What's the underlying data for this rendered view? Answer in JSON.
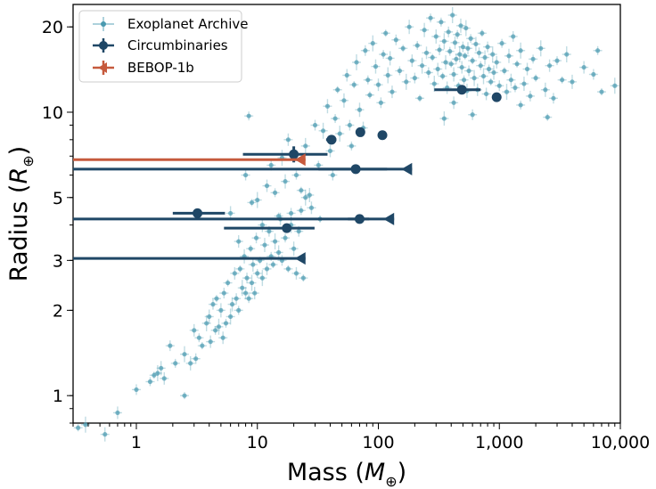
{
  "chart_data": {
    "type": "scatter",
    "xlabel": "Mass (M⊕)",
    "xlabel_base": "Mass (",
    "xlabel_symbol": "M",
    "xlabel_sub": "⊕",
    "xlabel_close": ")",
    "ylabel": "Radius (R⊕)",
    "ylabel_base": "Radius (",
    "ylabel_symbol": "R",
    "ylabel_sub": "⊕",
    "ylabel_close": ")",
    "xscale": "log",
    "yscale": "log",
    "xlim": [
      0.3,
      10000
    ],
    "ylim": [
      0.8,
      24
    ],
    "x_ticks": [
      {
        "value": 1,
        "label": "1"
      },
      {
        "value": 10,
        "label": "10"
      },
      {
        "value": 100,
        "label": "100"
      },
      {
        "value": 1000,
        "label": "1,000"
      },
      {
        "value": 10000,
        "label": "10,000"
      }
    ],
    "y_ticks": [
      {
        "value": 1,
        "label": "1"
      },
      {
        "value": 2,
        "label": "2"
      },
      {
        "value": 3,
        "label": "3"
      },
      {
        "value": 5,
        "label": "5"
      },
      {
        "value": 10,
        "label": "10"
      },
      {
        "value": 20,
        "label": "20"
      }
    ],
    "legend": {
      "location": "top-left",
      "entries": [
        {
          "label": "Exoplanet Archive",
          "color": "#4a9ab0"
        },
        {
          "label": "Circumbinaries",
          "color": "#1f4766"
        },
        {
          "label": "BEBOP-1b",
          "color": "#c65a3d"
        }
      ]
    },
    "colors": {
      "archive": "#4a9ab0",
      "circumbinary": "#1f4766",
      "bebop": "#c65a3d"
    },
    "series": [
      {
        "name": "Circumbinaries",
        "measured": [
          {
            "mass": 3.2,
            "mass_lo": 2.0,
            "mass_hi": 5.4,
            "radius": 4.4
          },
          {
            "mass": 17.5,
            "mass_lo": 5.3,
            "mass_hi": 29.7,
            "radius": 3.9
          },
          {
            "mass": 20.0,
            "mass_lo": 7.6,
            "mass_hi": 38.0,
            "radius": 7.1
          },
          {
            "mass": 41,
            "mass_lo": 37,
            "mass_hi": 45,
            "radius": 8.0
          },
          {
            "mass": 65,
            "mass_lo": 32,
            "mass_hi": 118,
            "radius": 6.3
          },
          {
            "mass": 70,
            "mass_lo": 56,
            "mass_hi": 84,
            "radius": 4.2
          },
          {
            "mass": 71,
            "mass_lo": 71,
            "mass_hi": 71,
            "radius": 8.5
          },
          {
            "mass": 108,
            "mass_lo": 108,
            "mass_hi": 108,
            "radius": 8.3
          },
          {
            "mass": 490,
            "mass_lo": 290,
            "mass_hi": 700,
            "radius": 12.0
          },
          {
            "mass": 950,
            "mass_lo": 950,
            "mass_hi": 950,
            "radius": 11.3
          }
        ],
        "upper_limits": [
          {
            "mass_limit": 190,
            "radius": 6.3
          },
          {
            "mass_limit": 135,
            "radius": 4.2
          },
          {
            "mass_limit": 25,
            "radius": 3.05
          }
        ]
      },
      {
        "name": "BEBOP-1b",
        "upper_limits": [
          {
            "mass_limit": 25,
            "radius": 6.8
          }
        ]
      },
      {
        "name": "Exoplanet Archive",
        "points": [
          [
            0.33,
            0.77
          ],
          [
            0.38,
            0.79
          ],
          [
            0.55,
            0.73
          ],
          [
            0.7,
            0.87
          ],
          [
            1.0,
            1.05
          ],
          [
            1.3,
            1.12
          ],
          [
            1.4,
            1.18
          ],
          [
            1.5,
            1.2
          ],
          [
            1.6,
            1.25
          ],
          [
            1.7,
            1.15
          ],
          [
            1.9,
            1.5
          ],
          [
            2.1,
            1.3
          ],
          [
            2.5,
            1.0
          ],
          [
            2.5,
            1.4
          ],
          [
            2.8,
            1.3
          ],
          [
            3.0,
            1.7
          ],
          [
            3.1,
            1.35
          ],
          [
            3.3,
            1.6
          ],
          [
            3.5,
            1.5
          ],
          [
            3.8,
            1.8
          ],
          [
            4.0,
            1.9
          ],
          [
            4.1,
            1.55
          ],
          [
            4.3,
            2.1
          ],
          [
            4.5,
            1.7
          ],
          [
            4.6,
            2.2
          ],
          [
            4.8,
            1.75
          ],
          [
            5.0,
            2.0
          ],
          [
            5.2,
            1.6
          ],
          [
            5.3,
            2.3
          ],
          [
            5.5,
            1.8
          ],
          [
            5.7,
            2.5
          ],
          [
            6.0,
            1.9
          ],
          [
            6.2,
            2.1
          ],
          [
            6.5,
            2.7
          ],
          [
            6.7,
            2.2
          ],
          [
            7.0,
            2.0
          ],
          [
            7.2,
            2.8
          ],
          [
            7.5,
            2.4
          ],
          [
            7.8,
            3.1
          ],
          [
            8.0,
            2.3
          ],
          [
            8.2,
            2.6
          ],
          [
            8.5,
            2.2
          ],
          [
            8.8,
            3.3
          ],
          [
            9.0,
            2.5
          ],
          [
            9.2,
            2.9
          ],
          [
            9.5,
            2.3
          ],
          [
            9.8,
            3.6
          ],
          [
            10,
            2.7
          ],
          [
            10.5,
            3.0
          ],
          [
            11,
            2.6
          ],
          [
            11.5,
            3.4
          ],
          [
            12,
            2.8
          ],
          [
            12.5,
            3.8
          ],
          [
            13,
            3.1
          ],
          [
            13.5,
            2.9
          ],
          [
            14,
            3.5
          ],
          [
            15,
            3.2
          ],
          [
            15.5,
            4.2
          ],
          [
            16,
            3.0
          ],
          [
            17,
            3.6
          ],
          [
            18,
            2.8
          ],
          [
            19,
            4.0
          ],
          [
            20,
            3.3
          ],
          [
            21,
            2.7
          ],
          [
            22,
            3.8
          ],
          [
            23,
            4.5
          ],
          [
            24,
            2.6
          ],
          [
            25,
            5.0
          ],
          [
            6.0,
            4.4
          ],
          [
            7.0,
            3.5
          ],
          [
            8.0,
            6.0
          ],
          [
            8.5,
            9.7
          ],
          [
            9.0,
            4.8
          ],
          [
            10,
            4.9
          ],
          [
            11,
            4.0
          ],
          [
            12,
            5.5
          ],
          [
            13,
            6.5
          ],
          [
            14,
            5.2
          ],
          [
            15,
            4.3
          ],
          [
            16,
            6.9
          ],
          [
            17,
            5.7
          ],
          [
            18,
            8.0
          ],
          [
            19,
            4.4
          ],
          [
            21,
            6.0
          ],
          [
            23,
            5.3
          ],
          [
            25,
            7.6
          ],
          [
            27,
            5.1
          ],
          [
            28,
            4.6
          ],
          [
            30,
            9.0
          ],
          [
            32,
            6.5
          ],
          [
            33,
            4.2
          ],
          [
            35,
            8.6
          ],
          [
            38,
            10.5
          ],
          [
            40,
            7.3
          ],
          [
            42,
            6.0
          ],
          [
            44,
            9.5
          ],
          [
            46,
            12.0
          ],
          [
            48,
            8.4
          ],
          [
            52,
            11.0
          ],
          [
            55,
            13.5
          ],
          [
            58,
            9.0
          ],
          [
            60,
            7.6
          ],
          [
            63,
            12.5
          ],
          [
            66,
            15.0
          ],
          [
            70,
            10.2
          ],
          [
            75,
            8.8
          ],
          [
            78,
            16.5
          ],
          [
            82,
            13.0
          ],
          [
            85,
            11.5
          ],
          [
            90,
            17.5
          ],
          [
            95,
            14.5
          ],
          [
            100,
            12.5
          ],
          [
            105,
            10.8
          ],
          [
            110,
            16.0
          ],
          [
            115,
            19.0
          ],
          [
            120,
            13.5
          ],
          [
            125,
            15.5
          ],
          [
            130,
            11.8
          ],
          [
            140,
            18.0
          ],
          [
            150,
            14.0
          ],
          [
            160,
            16.8
          ],
          [
            170,
            12.8
          ],
          [
            180,
            20.0
          ],
          [
            190,
            15.2
          ],
          [
            200,
            13.2
          ],
          [
            210,
            17.2
          ],
          [
            220,
            11.2
          ],
          [
            230,
            14.6
          ],
          [
            240,
            19.5
          ],
          [
            250,
            16.2
          ],
          [
            260,
            13.8
          ],
          [
            270,
            21.5
          ],
          [
            280,
            15.6
          ],
          [
            290,
            12.6
          ],
          [
            300,
            18.5
          ],
          [
            310,
            14.2
          ],
          [
            320,
            16.6
          ],
          [
            330,
            20.8
          ],
          [
            340,
            13.4
          ],
          [
            350,
            17.8
          ],
          [
            360,
            15.0
          ],
          [
            370,
            12.2
          ],
          [
            380,
            19.2
          ],
          [
            390,
            16.4
          ],
          [
            400,
            14.8
          ],
          [
            410,
            22.0
          ],
          [
            420,
            13.6
          ],
          [
            430,
            17.6
          ],
          [
            440,
            15.4
          ],
          [
            450,
            18.8
          ],
          [
            460,
            12.4
          ],
          [
            470,
            16.0
          ],
          [
            480,
            20.2
          ],
          [
            490,
            14.4
          ],
          [
            500,
            17.0
          ],
          [
            510,
            13.0
          ],
          [
            520,
            15.8
          ],
          [
            530,
            19.8
          ],
          [
            540,
            11.9
          ],
          [
            550,
            16.8
          ],
          [
            560,
            14.0
          ],
          [
            580,
            18.2
          ],
          [
            600,
            15.2
          ],
          [
            620,
            13.2
          ],
          [
            640,
            17.4
          ],
          [
            660,
            12.0
          ],
          [
            680,
            16.2
          ],
          [
            700,
            14.6
          ],
          [
            720,
            19.0
          ],
          [
            740,
            13.4
          ],
          [
            760,
            15.6
          ],
          [
            780,
            11.6
          ],
          [
            800,
            17.0
          ],
          [
            820,
            14.2
          ],
          [
            850,
            12.8
          ],
          [
            880,
            16.0
          ],
          [
            900,
            13.8
          ],
          [
            950,
            15.0
          ],
          [
            1000,
            12.4
          ],
          [
            1050,
            17.5
          ],
          [
            1100,
            14.0
          ],
          [
            1150,
            11.8
          ],
          [
            1200,
            15.8
          ],
          [
            1250,
            13.0
          ],
          [
            1300,
            18.5
          ],
          [
            1350,
            12.2
          ],
          [
            1400,
            14.8
          ],
          [
            1500,
            16.5
          ],
          [
            1600,
            12.6
          ],
          [
            1700,
            14.2
          ],
          [
            1800,
            11.4
          ],
          [
            1900,
            15.4
          ],
          [
            2000,
            13.2
          ],
          [
            2200,
            16.8
          ],
          [
            2400,
            12.0
          ],
          [
            2600,
            14.6
          ],
          [
            2800,
            11.2
          ],
          [
            3000,
            15.2
          ],
          [
            3300,
            13.0
          ],
          [
            3600,
            16.0
          ],
          [
            4000,
            12.8
          ],
          [
            5000,
            14.4
          ],
          [
            6000,
            13.6
          ],
          [
            6500,
            16.5
          ],
          [
            7000,
            11.8
          ],
          [
            9000,
            12.4
          ],
          [
            350,
            9.5
          ],
          [
            420,
            10.8
          ],
          [
            600,
            9.8
          ],
          [
            1500,
            10.6
          ],
          [
            2500,
            9.6
          ]
        ]
      }
    ]
  }
}
